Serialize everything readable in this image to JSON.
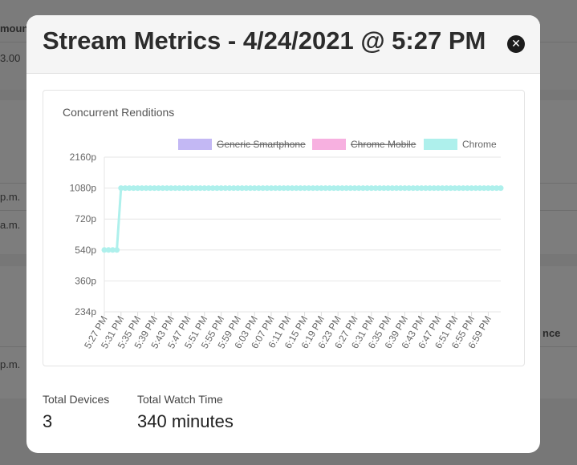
{
  "background": {
    "col_header": "moun",
    "col_header2": "nce",
    "value_1": "3.00",
    "time_1": "p.m.",
    "time_2": "a.m.",
    "time_3": "p.m."
  },
  "modal": {
    "title": "Stream Metrics - 4/24/2021 @ 5:27 PM",
    "close_icon": "close-icon"
  },
  "chart_card": {
    "title": "Concurrent Renditions"
  },
  "chart_data": {
    "type": "line",
    "title": "Concurrent Renditions",
    "legend_position": "top-right",
    "legend": [
      {
        "name": "Generic Smartphone",
        "color": "#c3b8f4",
        "hidden": true
      },
      {
        "name": "Chrome Mobile",
        "color": "#f7b0e0",
        "hidden": true
      },
      {
        "name": "Chrome",
        "color": "#aef0ec",
        "hidden": false
      }
    ],
    "y_ticks": [
      "234p",
      "360p",
      "540p",
      "720p",
      "1080p",
      "2160p"
    ],
    "x_tick_labels": [
      "5:27 PM",
      "5:31 PM",
      "5:35 PM",
      "5:39 PM",
      "5:43 PM",
      "5:47 PM",
      "5:51 PM",
      "5:55 PM",
      "5:59 PM",
      "6:03 PM",
      "6:07 PM",
      "6:11 PM",
      "6:15 PM",
      "6:19 PM",
      "6:23 PM",
      "6:27 PM",
      "6:31 PM",
      "6:35 PM",
      "6:39 PM",
      "6:43 PM",
      "6:47 PM",
      "6:51 PM",
      "6:55 PM",
      "6:59 PM"
    ],
    "grid": true,
    "series": [
      {
        "name": "Chrome",
        "color": "#aef0ec",
        "points": [
          {
            "t": "5:27 PM",
            "q": "540p"
          },
          {
            "t": "5:28 PM",
            "q": "540p"
          },
          {
            "t": "5:29 PM",
            "q": "540p"
          },
          {
            "t": "5:30 PM",
            "q": "540p"
          },
          {
            "t": "5:31 PM",
            "q": "1080p"
          },
          {
            "t": "5:32 PM",
            "q": "1080p"
          },
          {
            "t": "5:33 PM",
            "q": "1080p"
          },
          {
            "t": "5:34 PM",
            "q": "1080p"
          },
          {
            "t": "5:35 PM",
            "q": "1080p"
          },
          {
            "t": "5:36 PM",
            "q": "1080p"
          },
          {
            "t": "5:37 PM",
            "q": "1080p"
          },
          {
            "t": "5:38 PM",
            "q": "1080p"
          },
          {
            "t": "5:39 PM",
            "q": "1080p"
          },
          {
            "t": "5:40 PM",
            "q": "1080p"
          },
          {
            "t": "5:41 PM",
            "q": "1080p"
          },
          {
            "t": "5:42 PM",
            "q": "1080p"
          },
          {
            "t": "5:43 PM",
            "q": "1080p"
          },
          {
            "t": "5:44 PM",
            "q": "1080p"
          },
          {
            "t": "5:45 PM",
            "q": "1080p"
          },
          {
            "t": "5:46 PM",
            "q": "1080p"
          },
          {
            "t": "5:47 PM",
            "q": "1080p"
          },
          {
            "t": "5:48 PM",
            "q": "1080p"
          },
          {
            "t": "5:49 PM",
            "q": "1080p"
          },
          {
            "t": "5:50 PM",
            "q": "1080p"
          },
          {
            "t": "5:51 PM",
            "q": "1080p"
          },
          {
            "t": "5:52 PM",
            "q": "1080p"
          },
          {
            "t": "5:53 PM",
            "q": "1080p"
          },
          {
            "t": "5:54 PM",
            "q": "1080p"
          },
          {
            "t": "5:55 PM",
            "q": "1080p"
          },
          {
            "t": "5:56 PM",
            "q": "1080p"
          },
          {
            "t": "5:57 PM",
            "q": "1080p"
          },
          {
            "t": "5:58 PM",
            "q": "1080p"
          },
          {
            "t": "5:59 PM",
            "q": "1080p"
          },
          {
            "t": "6:00 PM",
            "q": "1080p"
          },
          {
            "t": "6:01 PM",
            "q": "1080p"
          },
          {
            "t": "6:02 PM",
            "q": "1080p"
          },
          {
            "t": "6:03 PM",
            "q": "1080p"
          },
          {
            "t": "6:04 PM",
            "q": "1080p"
          },
          {
            "t": "6:05 PM",
            "q": "1080p"
          },
          {
            "t": "6:06 PM",
            "q": "1080p"
          },
          {
            "t": "6:07 PM",
            "q": "1080p"
          },
          {
            "t": "6:08 PM",
            "q": "1080p"
          },
          {
            "t": "6:09 PM",
            "q": "1080p"
          },
          {
            "t": "6:10 PM",
            "q": "1080p"
          },
          {
            "t": "6:11 PM",
            "q": "1080p"
          },
          {
            "t": "6:12 PM",
            "q": "1080p"
          },
          {
            "t": "6:13 PM",
            "q": "1080p"
          },
          {
            "t": "6:14 PM",
            "q": "1080p"
          },
          {
            "t": "6:15 PM",
            "q": "1080p"
          },
          {
            "t": "6:16 PM",
            "q": "1080p"
          },
          {
            "t": "6:17 PM",
            "q": "1080p"
          },
          {
            "t": "6:18 PM",
            "q": "1080p"
          },
          {
            "t": "6:19 PM",
            "q": "1080p"
          },
          {
            "t": "6:20 PM",
            "q": "1080p"
          },
          {
            "t": "6:21 PM",
            "q": "1080p"
          },
          {
            "t": "6:22 PM",
            "q": "1080p"
          },
          {
            "t": "6:23 PM",
            "q": "1080p"
          },
          {
            "t": "6:24 PM",
            "q": "1080p"
          },
          {
            "t": "6:25 PM",
            "q": "1080p"
          },
          {
            "t": "6:26 PM",
            "q": "1080p"
          },
          {
            "t": "6:27 PM",
            "q": "1080p"
          },
          {
            "t": "6:28 PM",
            "q": "1080p"
          },
          {
            "t": "6:29 PM",
            "q": "1080p"
          },
          {
            "t": "6:30 PM",
            "q": "1080p"
          },
          {
            "t": "6:31 PM",
            "q": "1080p"
          },
          {
            "t": "6:32 PM",
            "q": "1080p"
          },
          {
            "t": "6:33 PM",
            "q": "1080p"
          },
          {
            "t": "6:34 PM",
            "q": "1080p"
          },
          {
            "t": "6:35 PM",
            "q": "1080p"
          },
          {
            "t": "6:36 PM",
            "q": "1080p"
          },
          {
            "t": "6:37 PM",
            "q": "1080p"
          },
          {
            "t": "6:38 PM",
            "q": "1080p"
          },
          {
            "t": "6:39 PM",
            "q": "1080p"
          },
          {
            "t": "6:40 PM",
            "q": "1080p"
          },
          {
            "t": "6:41 PM",
            "q": "1080p"
          },
          {
            "t": "6:42 PM",
            "q": "1080p"
          },
          {
            "t": "6:43 PM",
            "q": "1080p"
          },
          {
            "t": "6:44 PM",
            "q": "1080p"
          },
          {
            "t": "6:45 PM",
            "q": "1080p"
          },
          {
            "t": "6:46 PM",
            "q": "1080p"
          },
          {
            "t": "6:47 PM",
            "q": "1080p"
          },
          {
            "t": "6:48 PM",
            "q": "1080p"
          },
          {
            "t": "6:49 PM",
            "q": "1080p"
          },
          {
            "t": "6:50 PM",
            "q": "1080p"
          },
          {
            "t": "6:51 PM",
            "q": "1080p"
          },
          {
            "t": "6:52 PM",
            "q": "1080p"
          },
          {
            "t": "6:53 PM",
            "q": "1080p"
          },
          {
            "t": "6:54 PM",
            "q": "1080p"
          },
          {
            "t": "6:55 PM",
            "q": "1080p"
          },
          {
            "t": "6:56 PM",
            "q": "1080p"
          },
          {
            "t": "6:57 PM",
            "q": "1080p"
          },
          {
            "t": "6:58 PM",
            "q": "1080p"
          },
          {
            "t": "6:59 PM",
            "q": "1080p"
          },
          {
            "t": "7:00 PM",
            "q": "1080p"
          },
          {
            "t": "7:01 PM",
            "q": "1080p"
          },
          {
            "t": "7:02 PM",
            "q": "1080p"
          }
        ]
      }
    ]
  },
  "stats": {
    "total_devices_label": "Total Devices",
    "total_devices_value": "3",
    "total_watch_time_label": "Total Watch Time",
    "total_watch_time_value": "340 minutes"
  }
}
